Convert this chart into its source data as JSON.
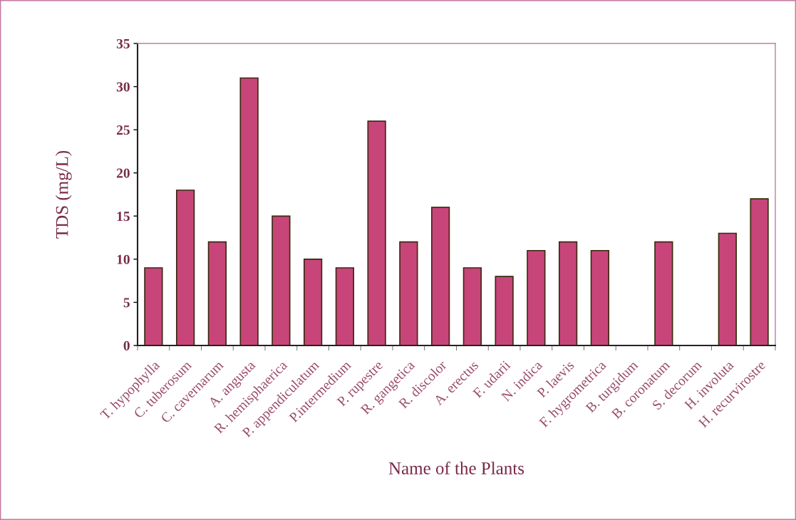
{
  "chart_data": {
    "type": "bar",
    "xlabel": "Name of the Plants",
    "ylabel": "TDS (mg/L)",
    "categories": [
      "T. hypophylla",
      "C. tuberosum",
      "C. cavernarum",
      "A. angusta",
      "R. hemisphaerica",
      "P. appendiculatum",
      "P.intermedium",
      "P. rupestre",
      "R. gangetica",
      "R. discolor",
      "A. erectus",
      "F. udarii",
      "N. indica",
      "P. laevis",
      "F. hygrometrica",
      "B. turgidum",
      "B. coronatum",
      "S. decorum",
      "H. involuta",
      "H. recurvirostre"
    ],
    "values": [
      9,
      18,
      12,
      31,
      15,
      10,
      9,
      26,
      12,
      16,
      9,
      8,
      11,
      12,
      11,
      0,
      12,
      0,
      13,
      17
    ],
    "color": "#c8457a",
    "ylim": [
      0,
      35
    ],
    "yticks": [
      0,
      5,
      10,
      15,
      20,
      25,
      30,
      35
    ],
    "grid": false
  }
}
